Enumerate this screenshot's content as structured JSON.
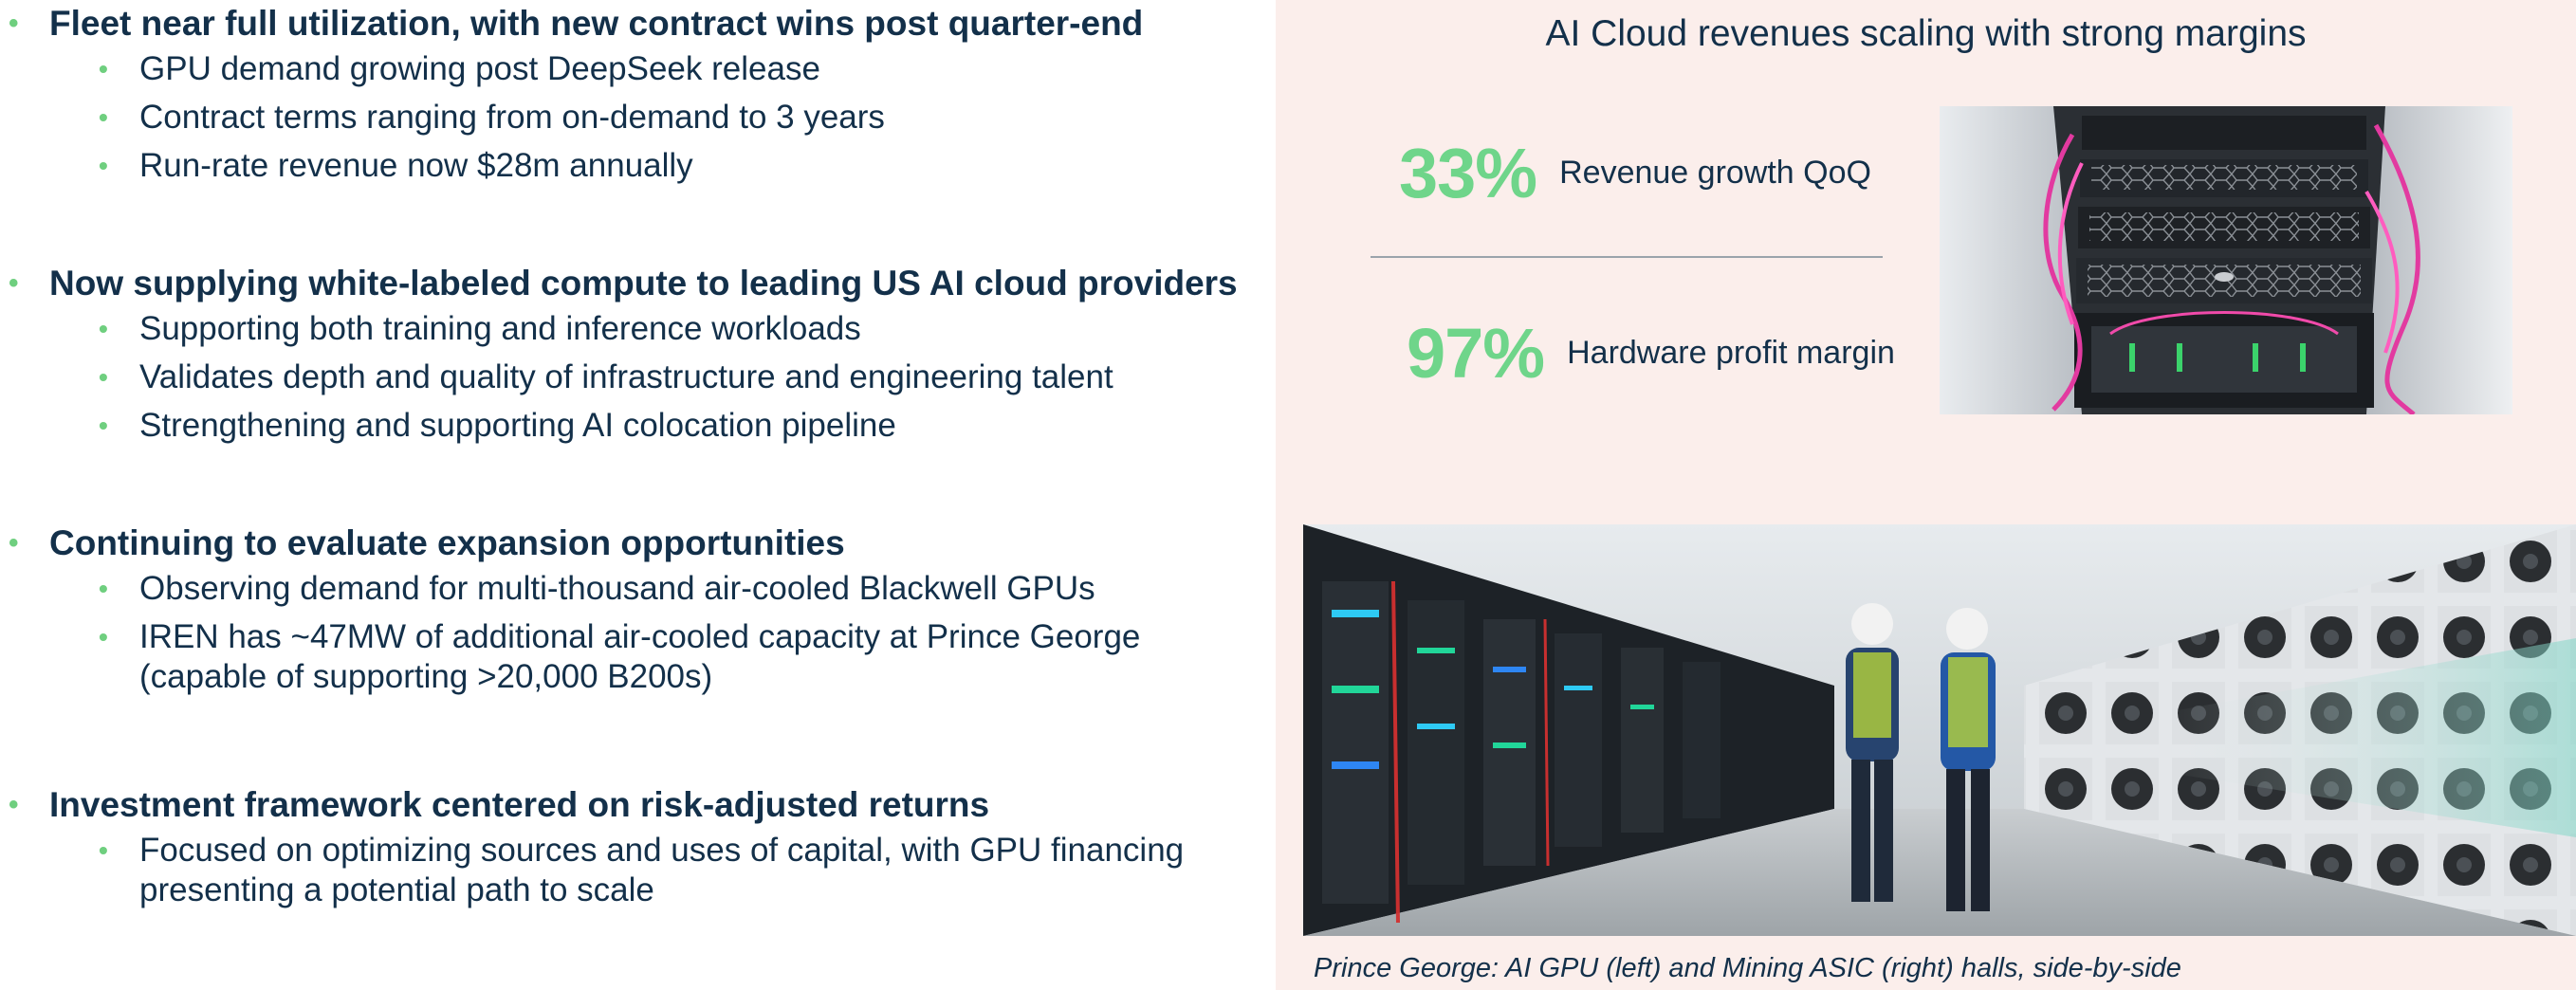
{
  "left": {
    "sections": [
      {
        "heading": "Fleet near full utilization, with new contract wins post quarter-end",
        "items": [
          "GPU demand growing post DeepSeek release",
          "Contract terms ranging from on-demand to 3 years",
          "Run-rate revenue now $28m annually"
        ]
      },
      {
        "heading": "Now supplying white-labeled compute to leading US AI cloud providers",
        "items": [
          "Supporting both training and inference workloads",
          "Validates depth and quality of infrastructure and engineering talent",
          "Strengthening and supporting AI colocation pipeline"
        ]
      },
      {
        "heading": "Continuing to evaluate expansion opportunities",
        "items": [
          "Observing demand for multi-thousand air-cooled Blackwell GPUs",
          "IREN has ~47MW of additional air-cooled capacity at Prince George (capable of supporting >20,000 B200s)"
        ]
      },
      {
        "heading": "Investment framework centered on risk-adjusted returns",
        "items": [
          "Focused on optimizing sources and uses of capital, with GPU financing presenting a potential path to scale"
        ]
      }
    ]
  },
  "right": {
    "title": "AI Cloud revenues scaling with strong margins",
    "metrics": [
      {
        "value": "33%",
        "label": "Revenue growth QoQ"
      },
      {
        "value": "97%",
        "label": "Hardware profit margin"
      }
    ],
    "caption": "Prince George: AI GPU (left) and Mining ASIC (right) halls, side-by-side"
  },
  "colors": {
    "accent_green": "#6fd58a",
    "text_navy": "#13304a",
    "panel_bg": "#fbeeeb"
  }
}
